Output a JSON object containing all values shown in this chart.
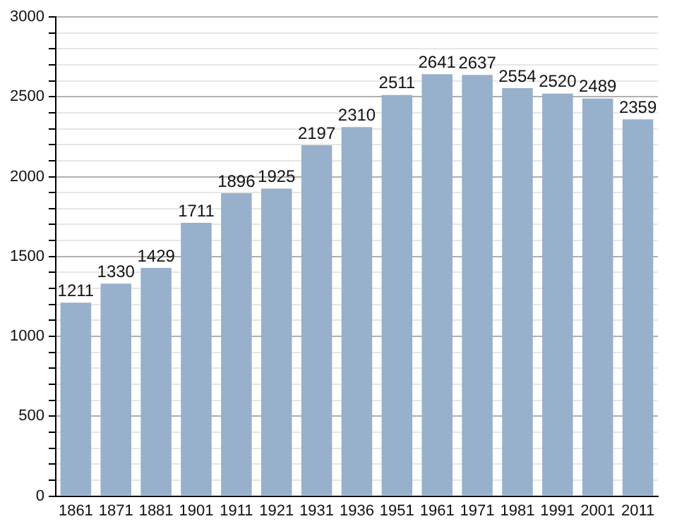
{
  "chart_data": {
    "type": "bar",
    "categories": [
      "1861",
      "1871",
      "1881",
      "1901",
      "1911",
      "1921",
      "1931",
      "1936",
      "1951",
      "1961",
      "1971",
      "1981",
      "1991",
      "2001",
      "2011"
    ],
    "values": [
      1211,
      1330,
      1429,
      1711,
      1896,
      1925,
      2197,
      2310,
      2511,
      2641,
      2637,
      2554,
      2520,
      2489,
      2359
    ],
    "color": "#97b0cb",
    "ylim": [
      0,
      3000
    ],
    "yticks": [
      0,
      {
        "value": 100,
        "label": null
      },
      {
        "value": 200,
        "label": null
      },
      {
        "value": 300,
        "label": null
      },
      {
        "value": 400,
        "label": null
      },
      500,
      {
        "value": 600,
        "label": null
      },
      {
        "value": 700,
        "label": null
      },
      {
        "value": 800,
        "label": null
      },
      {
        "value": 900,
        "label": null
      },
      1000,
      {
        "value": 1100,
        "label": null
      },
      {
        "value": 1200,
        "label": null
      },
      {
        "value": 1300,
        "label": null
      },
      {
        "value": 1400,
        "label": null
      },
      1500,
      {
        "value": 1600,
        "label": null
      },
      {
        "value": 1700,
        "label": null
      },
      {
        "value": 1800,
        "label": null
      },
      {
        "value": 1900,
        "label": null
      },
      2000,
      {
        "value": 2100,
        "label": null
      },
      {
        "value": 2200,
        "label": null
      },
      {
        "value": 2300,
        "label": null
      },
      {
        "value": 2400,
        "label": null
      },
      2500,
      {
        "value": 2600,
        "label": null
      },
      {
        "value": 2700,
        "label": null
      },
      {
        "value": 2800,
        "label": null
      },
      {
        "value": 2900,
        "label": null
      },
      3000
    ],
    "grid": "y",
    "data_labels": true
  }
}
